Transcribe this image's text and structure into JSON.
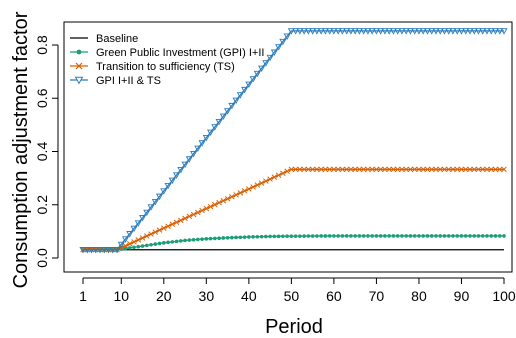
{
  "chart_data": {
    "type": "line",
    "title": "",
    "xlabel": "Period",
    "ylabel": "Consumption adjustment factor",
    "xlim": [
      1,
      100
    ],
    "ylim": [
      0,
      0.85
    ],
    "x_ticks": [
      1,
      10,
      20,
      30,
      40,
      50,
      60,
      70,
      80,
      90,
      100
    ],
    "y_ticks": [
      0.0,
      0.2,
      0.4,
      0.6,
      0.8
    ],
    "y_tick_labels": [
      "0.0",
      "0.2",
      "0.4",
      "0.6",
      "0.8"
    ],
    "grid": false,
    "legend_position": "top-left",
    "series": [
      {
        "name": "Baseline",
        "color": "#000000",
        "marker": "none",
        "points": [
          [
            1,
            0.031
          ],
          [
            100,
            0.031
          ]
        ]
      },
      {
        "name": "Green Public Investment (GPI) I+II",
        "color": "#1a9e77",
        "marker": "circle",
        "points": [
          [
            1,
            0.031
          ],
          [
            9,
            0.031
          ],
          [
            15,
            0.045
          ],
          [
            20,
            0.057
          ],
          [
            25,
            0.066
          ],
          [
            30,
            0.072
          ],
          [
            35,
            0.076
          ],
          [
            40,
            0.079
          ],
          [
            45,
            0.081
          ],
          [
            50,
            0.082
          ],
          [
            60,
            0.083
          ],
          [
            100,
            0.083
          ]
        ]
      },
      {
        "name": "Transition to sufficiency (TS)",
        "color": "#d95f02",
        "marker": "x",
        "points": [
          [
            1,
            0.031
          ],
          [
            9,
            0.031
          ],
          [
            50,
            0.333
          ],
          [
            100,
            0.333
          ]
        ]
      },
      {
        "name": "GPI I+II & TS",
        "color": "#2b7bba",
        "marker": "triangle-down",
        "points": [
          [
            1,
            0.031
          ],
          [
            9,
            0.031
          ],
          [
            50,
            0.853
          ],
          [
            100,
            0.853
          ]
        ]
      }
    ]
  }
}
